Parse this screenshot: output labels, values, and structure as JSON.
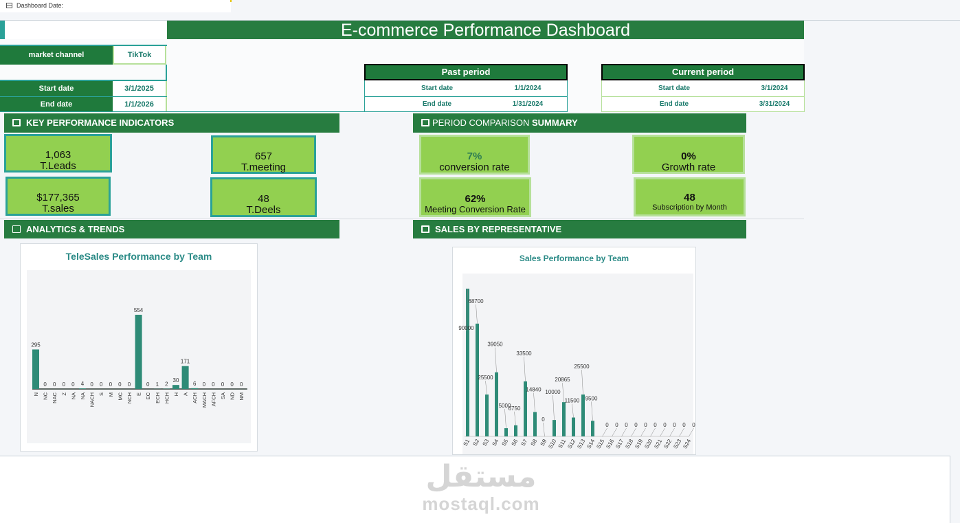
{
  "topbar": {
    "label": "Dashboard Date:"
  },
  "title": "E-commerce Performance Dashboard",
  "filters": {
    "market_channel_label": "market channel",
    "market_channel_value": "TikTok",
    "start_label": "Start date",
    "start_value": "3/1/2025",
    "end_label": "End date",
    "end_value": "1/1/2026"
  },
  "past_period": {
    "title": "Past period",
    "start_label": "Start date",
    "start_value": "1/1/2024",
    "end_label": "End date",
    "end_value": "1/31/2024"
  },
  "current_period": {
    "title": "Current period",
    "start_label": "Start date",
    "start_value": "3/1/2024",
    "end_label": "End date",
    "end_value": "3/31/2024"
  },
  "sections": {
    "kpi": "KEY PERFORMANCE INDICATORS",
    "comparison_pre": "PERIOD COMPARISON",
    "comparison_bold": "SUMMARY",
    "analytics": "ANALYTICS & TRENDS",
    "sales_rep": "SALES BY REPRESENTATIVE"
  },
  "kpis": {
    "leads": {
      "value": "1,063",
      "label": "T.Leads"
    },
    "meeting": {
      "value": "657",
      "label": "T.meeting"
    },
    "sales": {
      "value": "$177,365",
      "label": "T.sales"
    },
    "deels": {
      "value": "48",
      "label": "T.Deels"
    }
  },
  "comparison": {
    "conversion": {
      "value": "7%",
      "label": "conversion rate"
    },
    "growth": {
      "value": "0%",
      "label": "Growth rate"
    },
    "meeting_conv": {
      "value": "62%",
      "label": "Meeting Conversion Rate"
    },
    "subscription": {
      "value": "48",
      "label": "Subscription by Month"
    }
  },
  "watermark": {
    "arabic": "مستقل",
    "latin": "mostaql.com"
  },
  "colors": {
    "green": "#277c40",
    "kpi_fill": "#92d050",
    "teal": "#2aa198",
    "bar": "#2e8b77"
  },
  "chart_data": [
    {
      "type": "bar",
      "title": "TeleSales Performance by Team",
      "categories": [
        "N",
        "NC",
        "NAC",
        "Z",
        "NA",
        "NA",
        "NACH",
        "S",
        "M",
        "MC",
        "NCH",
        "E",
        "EC",
        "ECH",
        "HCH",
        "H",
        "A",
        "ACH",
        "MACH",
        "AFCH",
        "SA",
        "ND",
        "NM"
      ],
      "values": [
        295,
        0,
        0,
        0,
        0,
        4,
        0,
        0,
        0,
        0,
        0,
        554,
        0,
        1,
        2,
        30,
        171,
        6,
        0,
        0,
        0,
        0,
        0
      ],
      "ylim": [
        0,
        600
      ]
    },
    {
      "type": "bar",
      "title": "Sales Performance by Team",
      "categories": [
        "S1",
        "S2",
        "S3",
        "S4",
        "S5",
        "S6",
        "S7",
        "S8",
        "S9",
        "S10",
        "S11",
        "S12",
        "S13",
        "S14",
        "S15",
        "S16",
        "S17",
        "S18",
        "S19",
        "S20",
        "S21",
        "S22",
        "S23",
        "S24"
      ],
      "values": [
        90000,
        68700,
        25500,
        39050,
        5000,
        6750,
        33500,
        14840,
        0,
        10000,
        20865,
        11500,
        25500,
        9500,
        0,
        0,
        0,
        0,
        0,
        0,
        0,
        0,
        0,
        0
      ],
      "value_labels": [
        "90000",
        "68700",
        "25500",
        "39050",
        "5000",
        "6750",
        "33500",
        "14840",
        "0",
        "10000",
        "20865",
        "11500",
        "25500",
        "9500",
        "0",
        "0",
        "0",
        "0",
        "0",
        "0",
        "0",
        "0",
        "0",
        "0"
      ],
      "ylim": [
        0,
        95000
      ]
    }
  ]
}
